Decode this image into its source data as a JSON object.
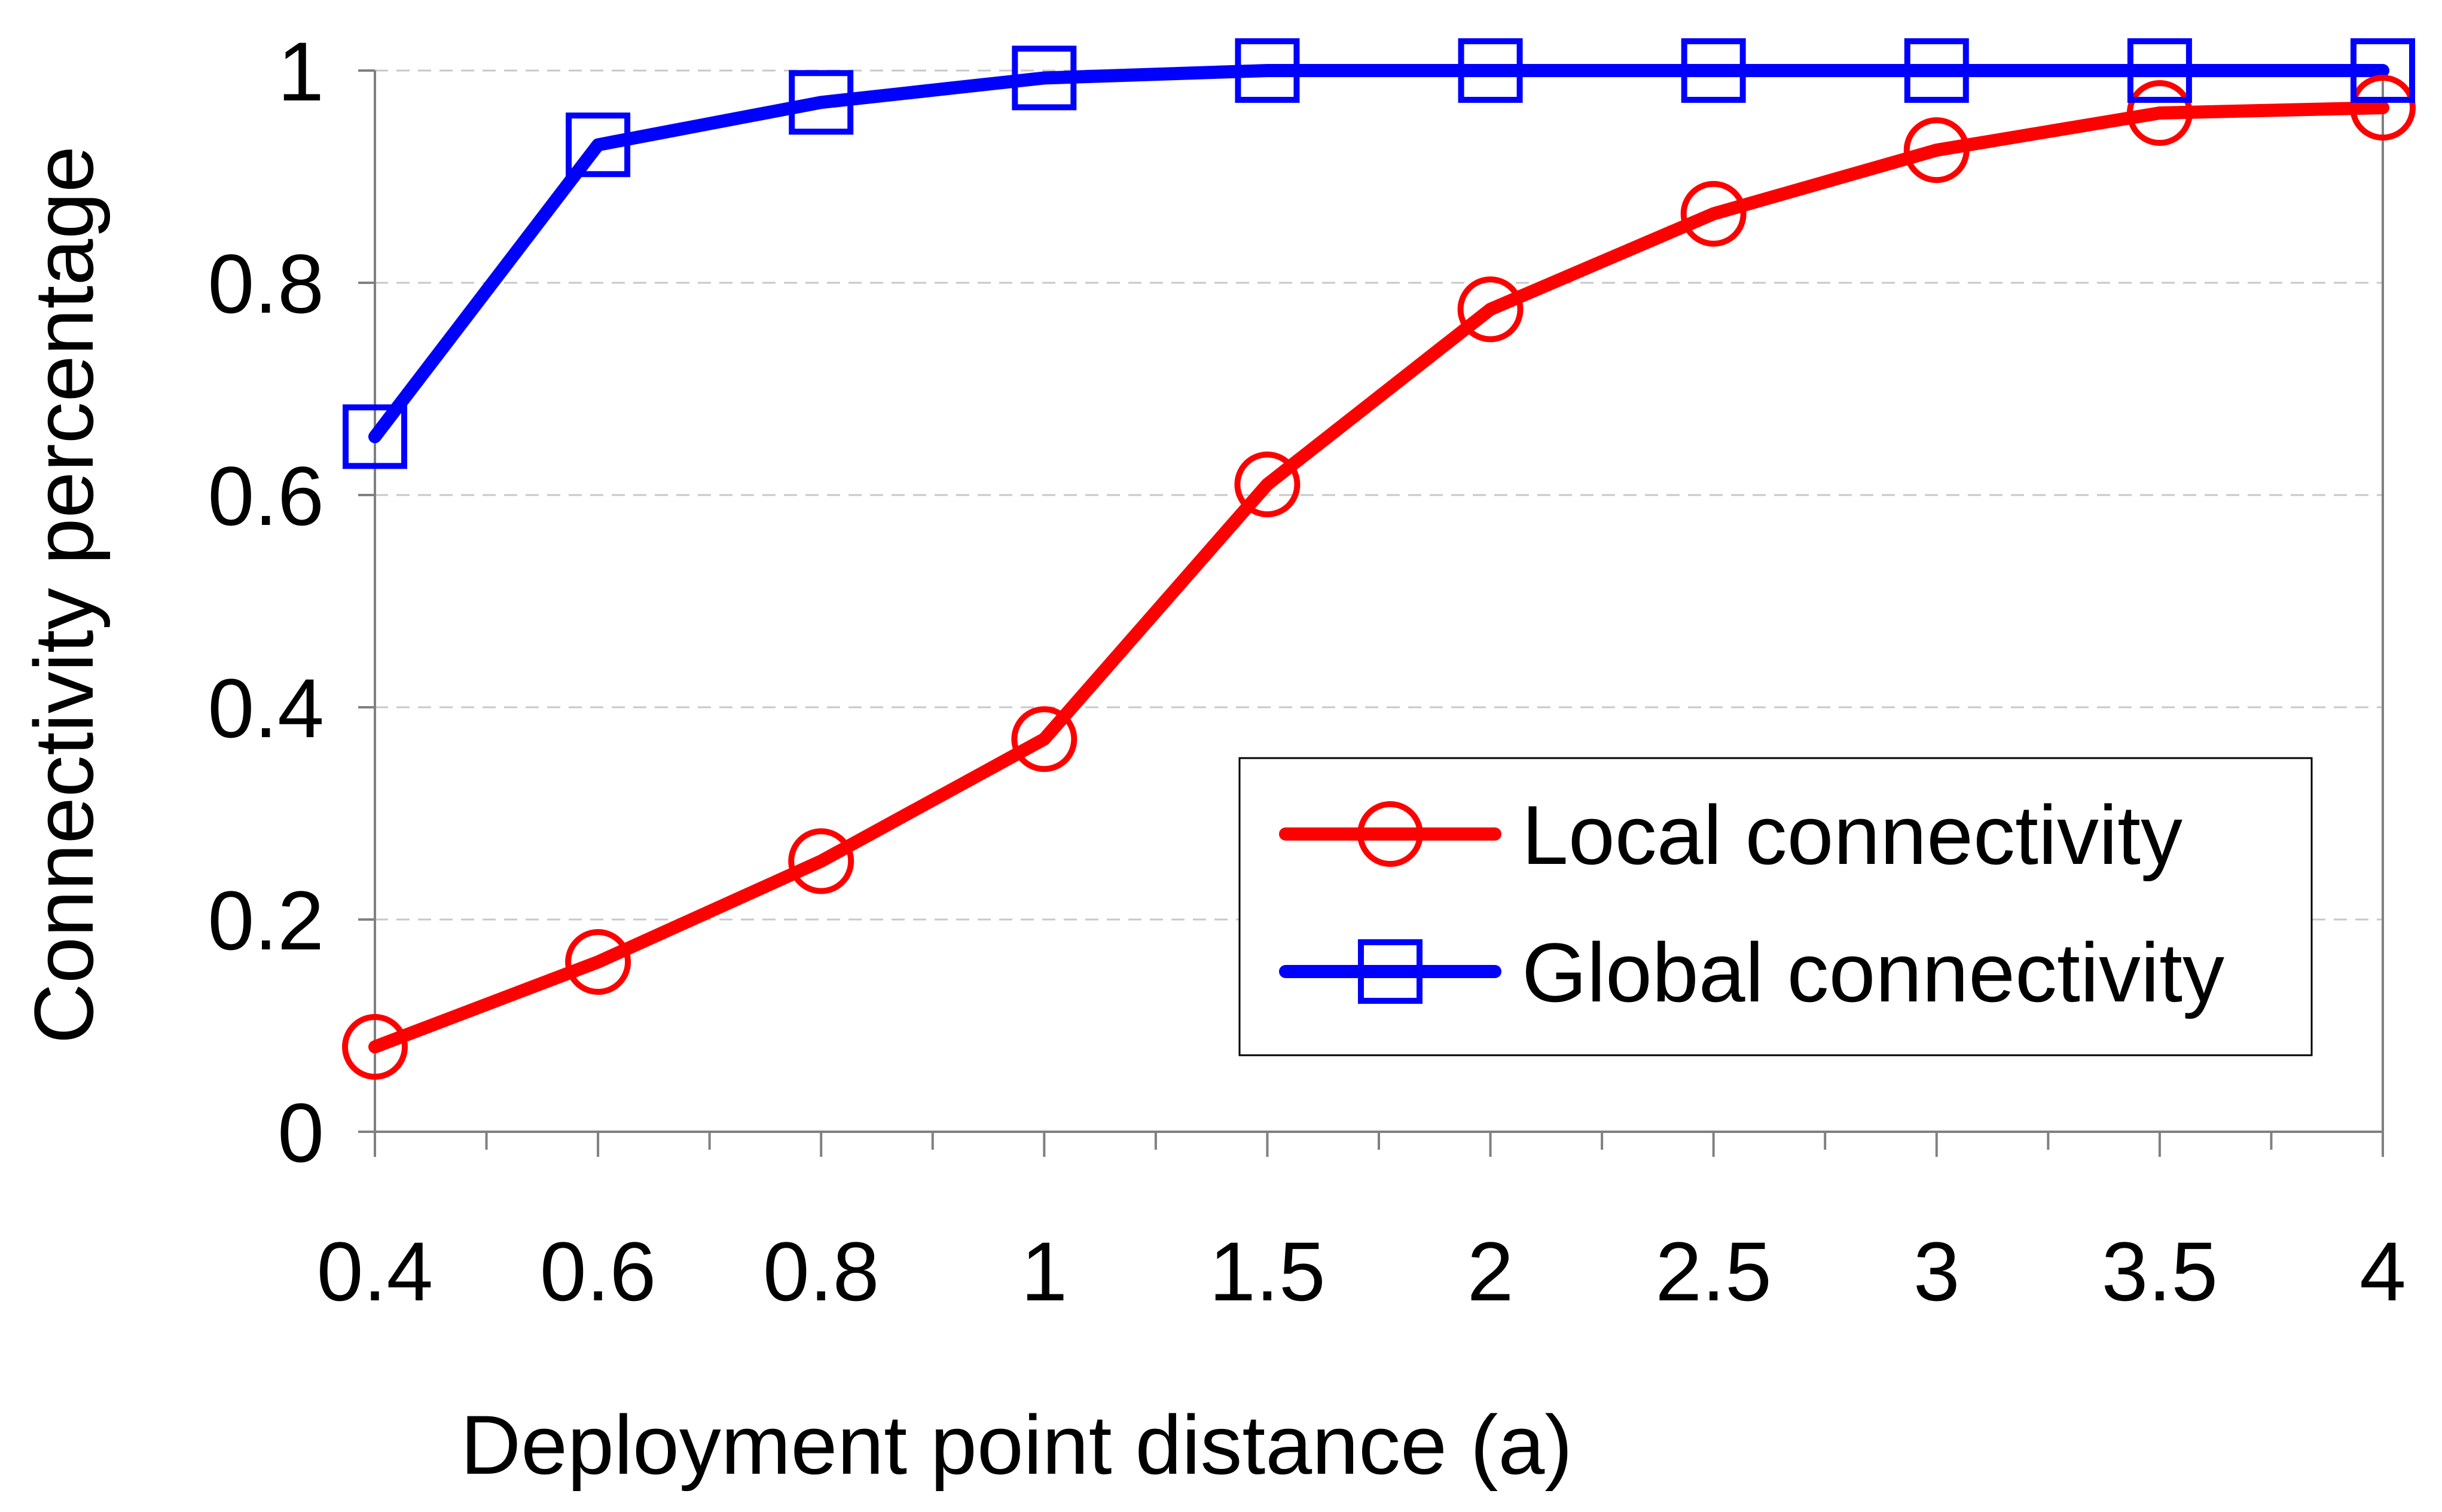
{
  "chart_data": {
    "type": "line",
    "title": "",
    "xlabel": "Deployment point distance (a)",
    "ylabel": "Connectivity percentage",
    "categories": [
      "0.4",
      "0.6",
      "0.8",
      "1",
      "1.5",
      "2",
      "2.5",
      "3",
      "3.5",
      "4"
    ],
    "ylim": [
      0,
      1
    ],
    "yticks": [
      "0",
      "0.2",
      "0.4",
      "0.6",
      "0.8",
      "1"
    ],
    "grid": "horizontal dashed",
    "legend_position": "lower-right",
    "series": [
      {
        "name": "Local connectivity",
        "marker": "circle",
        "color": "#ff0000",
        "values": [
          0.08,
          0.16,
          0.255,
          0.37,
          0.61,
          0.775,
          0.865,
          0.925,
          0.96,
          0.965
        ]
      },
      {
        "name": "Global connectivity",
        "marker": "square",
        "color": "#0000ff",
        "values": [
          0.655,
          0.93,
          0.97,
          0.993,
          1.0,
          1.0,
          1.0,
          1.0,
          1.0,
          1.0
        ]
      }
    ]
  }
}
